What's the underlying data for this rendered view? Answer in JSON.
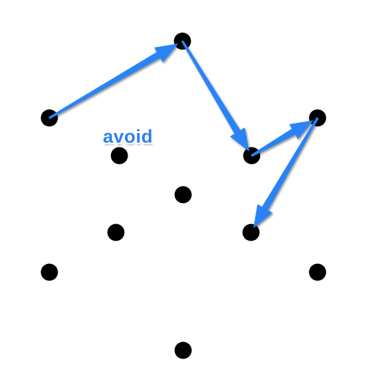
{
  "label": {
    "text": "avoid",
    "color": "#2f7ff0"
  },
  "colors": {
    "dot": "#000000",
    "arrow": "#2b83f6",
    "background": "#ffffff"
  },
  "dots": [
    {
      "id": "top-center"
    },
    {
      "id": "upper-left"
    },
    {
      "id": "upper-right"
    },
    {
      "id": "inner-upper-left"
    },
    {
      "id": "inner-upper-right"
    },
    {
      "id": "center"
    },
    {
      "id": "inner-lower-left"
    },
    {
      "id": "inner-lower-right"
    },
    {
      "id": "lower-left"
    },
    {
      "id": "lower-right"
    },
    {
      "id": "bottom-center"
    }
  ],
  "arrows": [
    {
      "from": "upper-left",
      "to": "top-center"
    },
    {
      "from": "top-center",
      "to": "inner-upper-right"
    },
    {
      "from": "inner-upper-right",
      "to": "upper-right"
    },
    {
      "from": "upper-right",
      "to": "inner-lower-right"
    }
  ]
}
